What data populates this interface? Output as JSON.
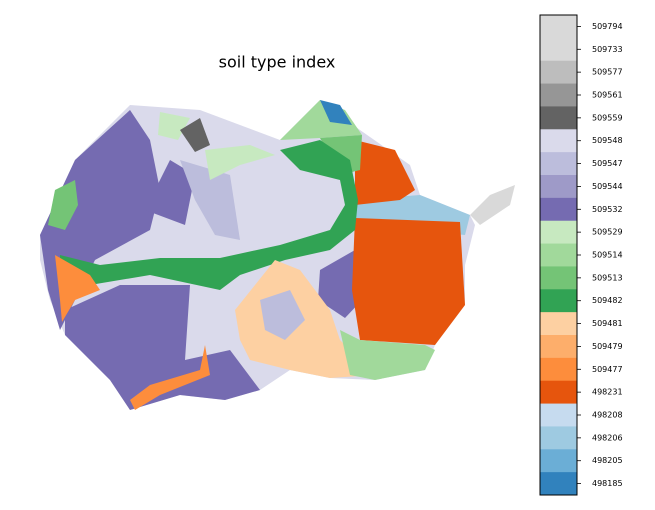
{
  "title": "soil type index",
  "legend": {
    "items": [
      {
        "label": "509794",
        "color": "#d9d9d9"
      },
      {
        "label": "509733",
        "color": "#d9d9d9"
      },
      {
        "label": "509577",
        "color": "#bdbdbd"
      },
      {
        "label": "509561",
        "color": "#969696"
      },
      {
        "label": "509559",
        "color": "#636363"
      },
      {
        "label": "509548",
        "color": "#dadaeb"
      },
      {
        "label": "509547",
        "color": "#bcbddc"
      },
      {
        "label": "509544",
        "color": "#9e9ac8"
      },
      {
        "label": "509532",
        "color": "#756bb1"
      },
      {
        "label": "509529",
        "color": "#c7e9c0"
      },
      {
        "label": "509514",
        "color": "#a1d99b"
      },
      {
        "label": "509513",
        "color": "#74c476"
      },
      {
        "label": "509482",
        "color": "#31a354"
      },
      {
        "label": "509481",
        "color": "#fdd0a2"
      },
      {
        "label": "509479",
        "color": "#fdae6b"
      },
      {
        "label": "509477",
        "color": "#fd8d3c"
      },
      {
        "label": "498231",
        "color": "#e6550d"
      },
      {
        "label": "498208",
        "color": "#c6dbef"
      },
      {
        "label": "498206",
        "color": "#9ecae1"
      },
      {
        "label": "498205",
        "color": "#6baed6"
      },
      {
        "label": "498185",
        "color": "#3182bd"
      }
    ]
  }
}
